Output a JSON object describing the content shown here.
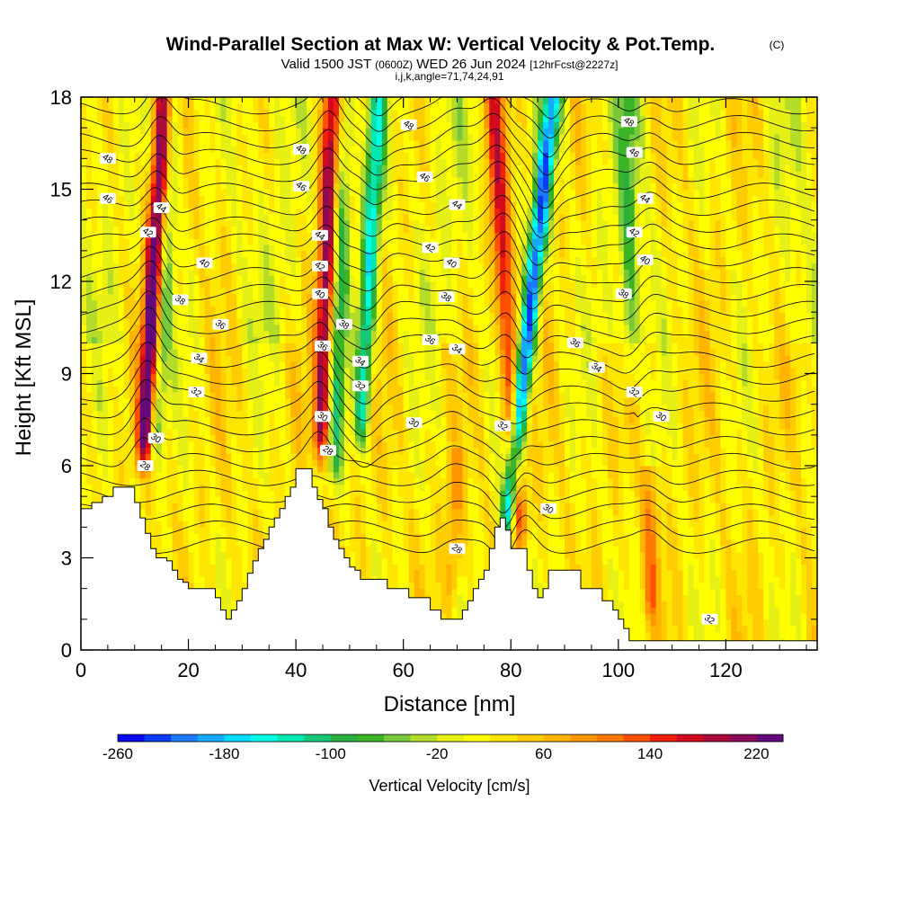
{
  "chart_data": {
    "type": "heatmap",
    "title": "Wind-Parallel Section at Max W: Vertical Velocity & Pot.Temp.",
    "title_mark": "(C)",
    "subtitle_valid": "Valid 1500 JST",
    "subtitle_utc": "(0600Z)",
    "subtitle_date": "WED 26 Jun 2024",
    "subtitle_fcst": "[12hrFcst@2227z]",
    "subtitle_indices": "i,j,k,angle=71,74,24,91",
    "xlabel": "Distance [nm]",
    "ylabel": "Height [Kft MSL]",
    "xlim": [
      0,
      137
    ],
    "ylim": [
      0,
      18
    ],
    "x_ticks": [
      "0",
      "20",
      "40",
      "60",
      "80",
      "100",
      "120"
    ],
    "y_ticks": [
      "0",
      "3",
      "6",
      "9",
      "12",
      "15",
      "18"
    ],
    "colorbar": {
      "label": "Vertical Velocity [cm/s]",
      "min": -260,
      "max": 240,
      "step": 20,
      "tick_labels": [
        "-260",
        "-180",
        "-100",
        "-20",
        "60",
        "140",
        "220"
      ],
      "colors": [
        "#0a0af0",
        "#0a3cf5",
        "#1e78ff",
        "#14aaff",
        "#00dcff",
        "#00ffe6",
        "#00e8b0",
        "#14c878",
        "#28b040",
        "#3cb428",
        "#78c83c",
        "#b4dc28",
        "#e6f014",
        "#ffff00",
        "#ffe600",
        "#ffcc00",
        "#ffb400",
        "#ff9600",
        "#ff7800",
        "#ff5000",
        "#f01e0a",
        "#d20a1e",
        "#aa0a3c",
        "#8c0a5a",
        "#64087a"
      ]
    },
    "updraft_cores": [
      {
        "x": 11.5,
        "bottom": 5.8,
        "top": 18,
        "tilt": 1.8,
        "w_max": 240
      },
      {
        "x": 44.5,
        "bottom": 5.9,
        "top": 18,
        "tilt": 1.0,
        "w_max": 200
      },
      {
        "x": 82,
        "bottom": 3.2,
        "top": 18,
        "tilt": -2.5,
        "w_max": 160
      },
      {
        "x": 69,
        "bottom": 1.0,
        "top": 6.0,
        "tilt": 0.3,
        "w_max": 60
      },
      {
        "x": 106,
        "bottom": 0.5,
        "top": 5.5,
        "tilt": 0.0,
        "w_max": 80
      }
    ],
    "downdraft_cores": [
      {
        "x": 52,
        "bottom": 6.5,
        "top": 18,
        "tilt": 1.5,
        "w_min": -180
      },
      {
        "x": 79,
        "bottom": 3.4,
        "top": 18,
        "tilt": 4.0,
        "w_min": -260
      },
      {
        "x": 14,
        "bottom": 6.0,
        "top": 18,
        "tilt": 1.5,
        "w_min": -90
      },
      {
        "x": 47,
        "bottom": 5.0,
        "top": 18,
        "tilt": 1.0,
        "w_min": -110
      },
      {
        "x": 102,
        "bottom": 8.0,
        "top": 18,
        "tilt": 0.0,
        "w_min": -70
      }
    ],
    "terrain": [
      {
        "x": 0,
        "h": 4.6
      },
      {
        "x": 2,
        "h": 4.8
      },
      {
        "x": 4,
        "h": 5.0
      },
      {
        "x": 6,
        "h": 5.3
      },
      {
        "x": 9,
        "h": 5.3
      },
      {
        "x": 10,
        "h": 4.8
      },
      {
        "x": 11,
        "h": 4.3
      },
      {
        "x": 12,
        "h": 3.8
      },
      {
        "x": 13,
        "h": 3.3
      },
      {
        "x": 14,
        "h": 3.0
      },
      {
        "x": 16,
        "h": 2.9
      },
      {
        "x": 17,
        "h": 2.6
      },
      {
        "x": 18,
        "h": 2.3
      },
      {
        "x": 19,
        "h": 2.2
      },
      {
        "x": 20,
        "h": 2.0
      },
      {
        "x": 24,
        "h": 2.0
      },
      {
        "x": 25,
        "h": 1.7
      },
      {
        "x": 26,
        "h": 1.3
      },
      {
        "x": 27,
        "h": 1.0
      },
      {
        "x": 28,
        "h": 1.3
      },
      {
        "x": 29,
        "h": 1.6
      },
      {
        "x": 30,
        "h": 2.0
      },
      {
        "x": 31,
        "h": 2.5
      },
      {
        "x": 32,
        "h": 2.9
      },
      {
        "x": 33,
        "h": 3.3
      },
      {
        "x": 34,
        "h": 3.6
      },
      {
        "x": 35,
        "h": 4.0
      },
      {
        "x": 36,
        "h": 4.3
      },
      {
        "x": 37,
        "h": 4.6
      },
      {
        "x": 38,
        "h": 5.0
      },
      {
        "x": 39,
        "h": 5.3
      },
      {
        "x": 40,
        "h": 5.9
      },
      {
        "x": 42,
        "h": 5.9
      },
      {
        "x": 43,
        "h": 5.3
      },
      {
        "x": 44,
        "h": 4.9
      },
      {
        "x": 45,
        "h": 4.6
      },
      {
        "x": 46,
        "h": 4.0
      },
      {
        "x": 47,
        "h": 3.6
      },
      {
        "x": 48,
        "h": 3.3
      },
      {
        "x": 49,
        "h": 3.0
      },
      {
        "x": 50,
        "h": 2.7
      },
      {
        "x": 51,
        "h": 2.6
      },
      {
        "x": 52,
        "h": 2.3
      },
      {
        "x": 56,
        "h": 2.3
      },
      {
        "x": 57,
        "h": 2.0
      },
      {
        "x": 60,
        "h": 2.0
      },
      {
        "x": 61,
        "h": 1.7
      },
      {
        "x": 64,
        "h": 1.7
      },
      {
        "x": 65,
        "h": 1.3
      },
      {
        "x": 66,
        "h": 1.3
      },
      {
        "x": 67,
        "h": 1.0
      },
      {
        "x": 70,
        "h": 1.0
      },
      {
        "x": 71,
        "h": 1.3
      },
      {
        "x": 72,
        "h": 1.6
      },
      {
        "x": 73,
        "h": 2.0
      },
      {
        "x": 74,
        "h": 2.3
      },
      {
        "x": 75,
        "h": 2.6
      },
      {
        "x": 76,
        "h": 3.3
      },
      {
        "x": 77,
        "h": 4.0
      },
      {
        "x": 78,
        "h": 4.3
      },
      {
        "x": 79,
        "h": 3.9
      },
      {
        "x": 80,
        "h": 3.3
      },
      {
        "x": 82,
        "h": 3.3
      },
      {
        "x": 83,
        "h": 2.6
      },
      {
        "x": 84,
        "h": 2.0
      },
      {
        "x": 85,
        "h": 1.7
      },
      {
        "x": 86,
        "h": 2.0
      },
      {
        "x": 87,
        "h": 2.6
      },
      {
        "x": 92,
        "h": 2.6
      },
      {
        "x": 93,
        "h": 2.0
      },
      {
        "x": 96,
        "h": 2.0
      },
      {
        "x": 97,
        "h": 1.6
      },
      {
        "x": 99,
        "h": 1.3
      },
      {
        "x": 100,
        "h": 1.0
      },
      {
        "x": 101,
        "h": 0.7
      },
      {
        "x": 102,
        "h": 0.3
      },
      {
        "x": 137,
        "h": 0.3
      }
    ],
    "contour_labels": [
      {
        "x": 5,
        "y": 16.0,
        "text": "48"
      },
      {
        "x": 5,
        "y": 14.7,
        "text": "46"
      },
      {
        "x": 15,
        "y": 14.4,
        "text": "44"
      },
      {
        "x": 12.5,
        "y": 13.6,
        "text": "42"
      },
      {
        "x": 23,
        "y": 12.6,
        "text": "40"
      },
      {
        "x": 18.5,
        "y": 11.4,
        "text": "38"
      },
      {
        "x": 26,
        "y": 10.6,
        "text": "36"
      },
      {
        "x": 22,
        "y": 9.5,
        "text": "34"
      },
      {
        "x": 21.5,
        "y": 8.4,
        "text": "32"
      },
      {
        "x": 14,
        "y": 6.9,
        "text": "30"
      },
      {
        "x": 12,
        "y": 6.0,
        "text": "28"
      },
      {
        "x": 41,
        "y": 16.3,
        "text": "48"
      },
      {
        "x": 41,
        "y": 15.1,
        "text": "46"
      },
      {
        "x": 44.5,
        "y": 13.5,
        "text": "44"
      },
      {
        "x": 44.5,
        "y": 12.5,
        "text": "42"
      },
      {
        "x": 44.5,
        "y": 11.6,
        "text": "40"
      },
      {
        "x": 49,
        "y": 10.6,
        "text": "38"
      },
      {
        "x": 45,
        "y": 9.9,
        "text": "36"
      },
      {
        "x": 52,
        "y": 9.4,
        "text": "34"
      },
      {
        "x": 52,
        "y": 8.6,
        "text": "32"
      },
      {
        "x": 45,
        "y": 7.6,
        "text": "30"
      },
      {
        "x": 46,
        "y": 6.5,
        "text": "28"
      },
      {
        "x": 61,
        "y": 17.1,
        "text": "48"
      },
      {
        "x": 64,
        "y": 15.4,
        "text": "46"
      },
      {
        "x": 70,
        "y": 14.5,
        "text": "44"
      },
      {
        "x": 65,
        "y": 13.1,
        "text": "42"
      },
      {
        "x": 69,
        "y": 12.6,
        "text": "40"
      },
      {
        "x": 68,
        "y": 11.5,
        "text": "38"
      },
      {
        "x": 65,
        "y": 10.1,
        "text": "36"
      },
      {
        "x": 70,
        "y": 9.8,
        "text": "34"
      },
      {
        "x": 62,
        "y": 7.4,
        "text": "30"
      },
      {
        "x": 70,
        "y": 3.3,
        "text": "28"
      },
      {
        "x": 78.5,
        "y": 7.3,
        "text": "32"
      },
      {
        "x": 87,
        "y": 4.6,
        "text": "30"
      },
      {
        "x": 102,
        "y": 17.2,
        "text": "48"
      },
      {
        "x": 103,
        "y": 16.2,
        "text": "46"
      },
      {
        "x": 105,
        "y": 14.7,
        "text": "44"
      },
      {
        "x": 103,
        "y": 13.6,
        "text": "42"
      },
      {
        "x": 105,
        "y": 12.7,
        "text": "40"
      },
      {
        "x": 101,
        "y": 11.6,
        "text": "38"
      },
      {
        "x": 92,
        "y": 10.0,
        "text": "36"
      },
      {
        "x": 96,
        "y": 9.2,
        "text": "34"
      },
      {
        "x": 103,
        "y": 8.4,
        "text": "32"
      },
      {
        "x": 108,
        "y": 7.6,
        "text": "30"
      },
      {
        "x": 117,
        "y": 1.0,
        "text": "32"
      }
    ]
  }
}
